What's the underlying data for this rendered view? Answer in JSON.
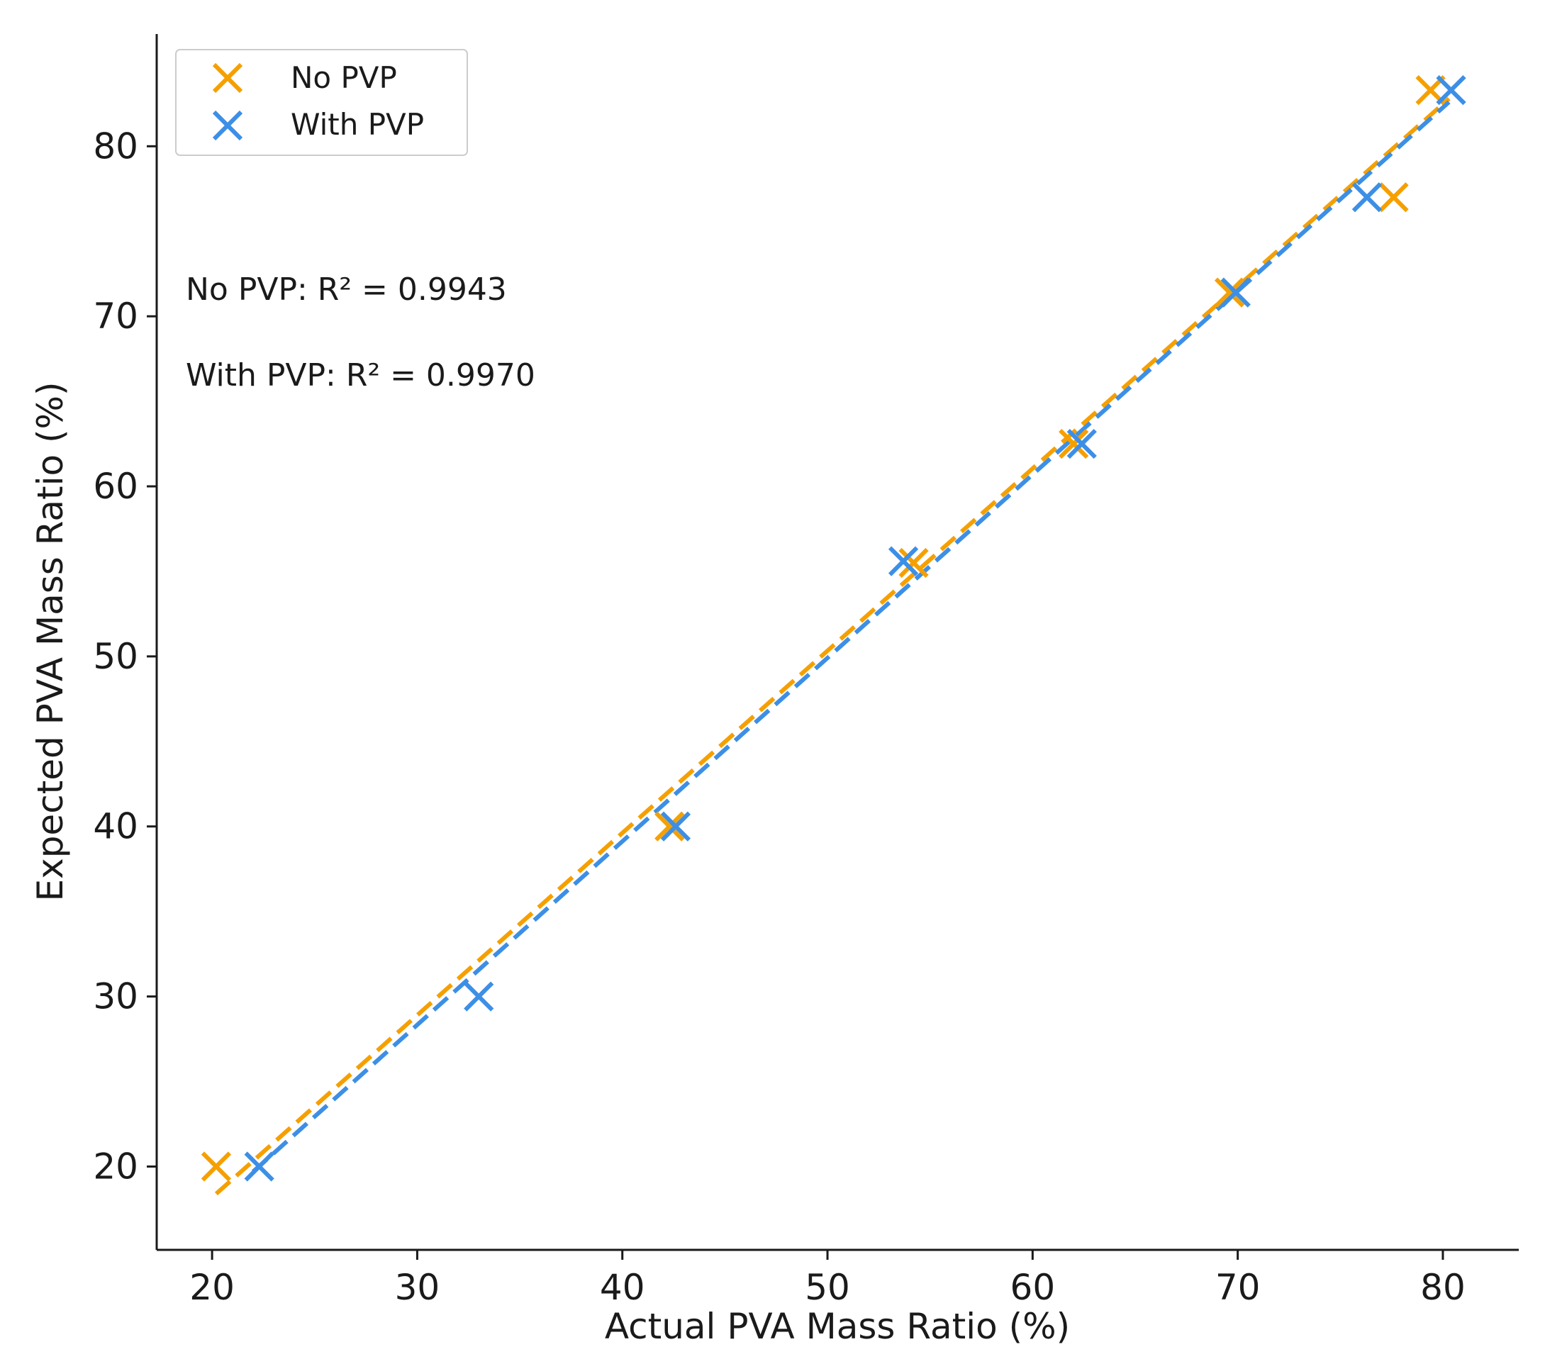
{
  "chart_data": {
    "type": "scatter",
    "title": "",
    "xlabel": "Actual PVA Mass Ratio (%)",
    "ylabel": "Expected PVA Mass Ratio (%)",
    "xlim": [
      17.3,
      83.7
    ],
    "ylim": [
      15.1,
      86.6
    ],
    "xticks": [
      20,
      30,
      40,
      50,
      60,
      70,
      80
    ],
    "yticks": [
      20,
      30,
      40,
      50,
      60,
      70,
      80
    ],
    "grid": false,
    "legend_position": "top-left",
    "series": [
      {
        "name": "No PVP",
        "color": "#f5a000",
        "marker": "x",
        "points": [
          [
            20.2,
            20
          ],
          [
            42.3,
            40
          ],
          [
            54.2,
            55.5
          ],
          [
            62.0,
            62.5
          ],
          [
            69.6,
            71.4
          ],
          [
            77.6,
            77.0
          ],
          [
            79.4,
            83.3
          ]
        ],
        "fit_line": {
          "x": [
            20.2,
            80.3
          ],
          "y": [
            18.4,
            82.8
          ],
          "style": "dashed"
        }
      },
      {
        "name": "With PVP",
        "color": "#3d8fe6",
        "marker": "x",
        "points": [
          [
            22.3,
            20
          ],
          [
            33.0,
            30
          ],
          [
            42.6,
            40
          ],
          [
            53.7,
            55.6
          ],
          [
            62.4,
            62.5
          ],
          [
            69.9,
            71.4
          ],
          [
            76.3,
            77.0
          ],
          [
            80.4,
            83.3
          ]
        ],
        "fit_line": {
          "x": [
            22.0,
            80.3
          ],
          "y": [
            19.7,
            82.6
          ],
          "style": "dashed"
        }
      }
    ],
    "annotations": [
      "No PVP: R² = 0.9943",
      "With PVP: R² = 0.9970"
    ]
  }
}
